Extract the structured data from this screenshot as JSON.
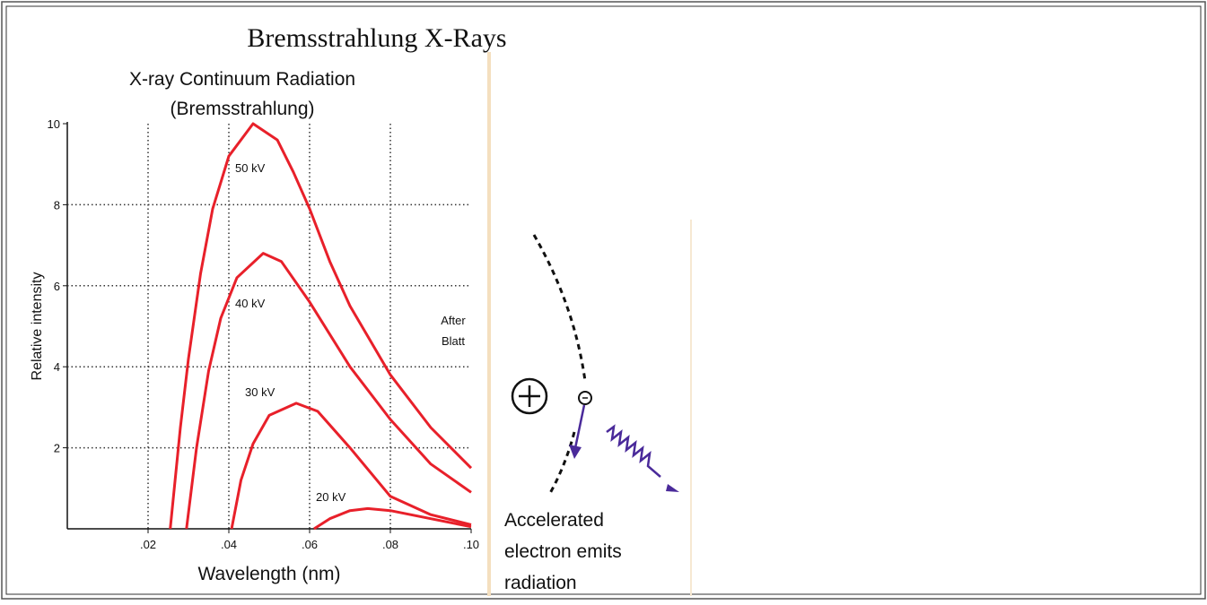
{
  "page_title": "Bremsstrahlung X-Rays",
  "chart_data": {
    "type": "line",
    "title": "X-ray Continuum Radiation",
    "subtitle": "(Bremsstrahlung)",
    "x_label": "Wavelength (nm)",
    "y_label": "Relative intensity",
    "xlim": [
      0,
      0.1
    ],
    "ylim": [
      0,
      10
    ],
    "xticks": [
      {
        "value": 0.02,
        "label": ".02"
      },
      {
        "value": 0.04,
        "label": ".04"
      },
      {
        "value": 0.06,
        "label": ".06"
      },
      {
        "value": 0.08,
        "label": ".08"
      },
      {
        "value": 0.1,
        "label": ".10"
      }
    ],
    "yticks": [
      2,
      4,
      6,
      8,
      10
    ],
    "grid": true,
    "series": [
      {
        "name": "50 kV",
        "color": "#e8202a",
        "x": [
          0.0255,
          0.028,
          0.03,
          0.033,
          0.036,
          0.04,
          0.046,
          0.052,
          0.056,
          0.06,
          0.065,
          0.07,
          0.08,
          0.09,
          0.1
        ],
        "values": [
          0,
          2.5,
          4.2,
          6.3,
          7.9,
          9.2,
          10,
          9.6,
          8.8,
          7.9,
          6.6,
          5.5,
          3.8,
          2.5,
          1.5
        ]
      },
      {
        "name": "40 kV",
        "color": "#e8202a",
        "x": [
          0.0295,
          0.032,
          0.035,
          0.038,
          0.042,
          0.0485,
          0.053,
          0.06,
          0.07,
          0.08,
          0.09,
          0.1
        ],
        "values": [
          0,
          2,
          3.9,
          5.2,
          6.2,
          6.8,
          6.6,
          5.6,
          4,
          2.7,
          1.6,
          0.9
        ]
      },
      {
        "name": "30 kV",
        "color": "#e8202a",
        "x": [
          0.0407,
          0.043,
          0.046,
          0.05,
          0.0567,
          0.062,
          0.07,
          0.08,
          0.09,
          0.1
        ],
        "values": [
          0,
          1.2,
          2.1,
          2.8,
          3.1,
          2.9,
          2,
          0.8,
          0.35,
          0.1
        ]
      },
      {
        "name": "20 kV",
        "color": "#e8202a",
        "x": [
          0.0611,
          0.065,
          0.07,
          0.0744,
          0.08,
          0.09,
          0.1
        ],
        "values": [
          0,
          0.25,
          0.45,
          0.5,
          0.45,
          0.25,
          0.05
        ]
      }
    ],
    "annotation": [
      "After",
      "Blatt"
    ]
  },
  "diagram": {
    "caption": [
      "Accelerated",
      "electron emits",
      "radiation"
    ]
  }
}
